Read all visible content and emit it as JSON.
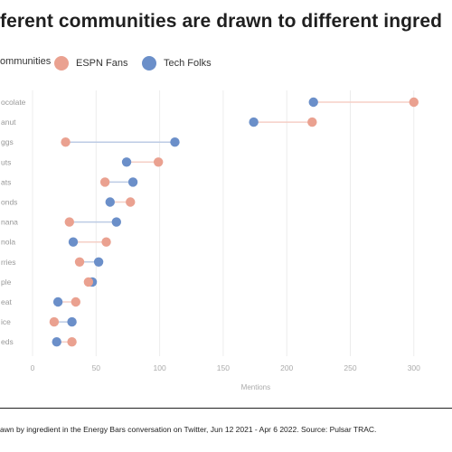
{
  "title": "ferent communities are drawn to different ingred",
  "legend": {
    "all_label": "ommunities",
    "series": [
      {
        "name": "ESPN Fans",
        "color": "#eaa190"
      },
      {
        "name": "Tech Folks",
        "color": "#6b8fc9"
      }
    ]
  },
  "caption": "awn by ingredient in the Energy Bars conversation on Twitter, Jun 12 2021 - Apr 6 2022. Source: Pulsar TRAC.",
  "chart_data": {
    "type": "dumbbell",
    "xlabel": "Mentions",
    "xlim": [
      0,
      330
    ],
    "xticks": [
      0,
      50,
      100,
      150,
      200,
      250,
      300
    ],
    "grid": true,
    "categories": [
      "ocolate",
      "anut",
      "ggs",
      "uts",
      "ats",
      "onds",
      "nana",
      "nola",
      "rries",
      "ple",
      "eat",
      "ice",
      "eds"
    ],
    "series": [
      {
        "name": "ESPN Fans",
        "values": [
          300,
          220,
          26,
          99,
          57,
          77,
          29,
          58,
          37,
          44,
          34,
          17,
          31
        ]
      },
      {
        "name": "Tech Folks",
        "values": [
          221,
          174,
          112,
          74,
          79,
          61,
          66,
          32,
          52,
          47,
          20,
          31,
          19
        ]
      }
    ]
  }
}
